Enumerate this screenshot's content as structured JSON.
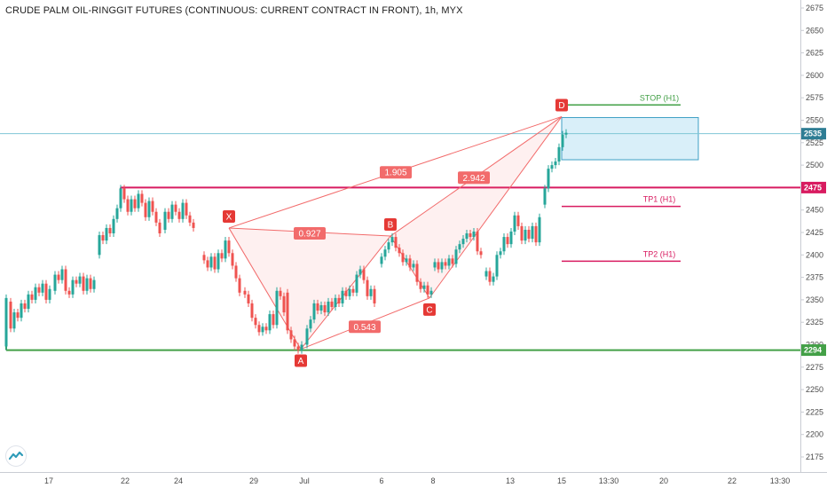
{
  "title": "CRUDE PALM OIL-RINGGIT FUTURES (CONTINUOUS: CURRENT CONTRACT IN FRONT), 1h, MYX",
  "colors": {
    "up": "#26a69a",
    "down": "#ef5350",
    "support": "#43a047",
    "resistance": "#d81b60",
    "pattern": "#f26b6b",
    "last_price": "#7fc6d6",
    "stop_zone_fill": "#d9eff9",
    "stop_zone_border": "#3d9fc4"
  },
  "chart_data": {
    "type": "candlestick",
    "ylim": [
      2165,
      2685
    ],
    "yticks": [
      2175,
      2200,
      2225,
      2250,
      2275,
      2300,
      2325,
      2350,
      2375,
      2400,
      2425,
      2450,
      2475,
      2500,
      2525,
      2550,
      2575,
      2600,
      2625,
      2650,
      2675
    ],
    "xticks": [
      {
        "label": "17",
        "pos": 55
      },
      {
        "label": "22",
        "pos": 141
      },
      {
        "label": "24",
        "pos": 201
      },
      {
        "label": "29",
        "pos": 286
      },
      {
        "label": "Jul",
        "pos": 343
      },
      {
        "label": "6",
        "pos": 430
      },
      {
        "label": "8",
        "pos": 488
      },
      {
        "label": "13",
        "pos": 575
      },
      {
        "label": "15",
        "pos": 633
      },
      {
        "label": "13:30",
        "pos": 686
      },
      {
        "label": "20",
        "pos": 748
      },
      {
        "label": "22",
        "pos": 825
      },
      {
        "label": "13:30",
        "pos": 879
      }
    ],
    "candles": [
      [
        7,
        2298,
        2352
      ],
      [
        12,
        2348,
        2318
      ],
      [
        16,
        2318,
        2336
      ],
      [
        20,
        2336,
        2330
      ],
      [
        24,
        2330,
        2346
      ],
      [
        28,
        2346,
        2340
      ],
      [
        32,
        2340,
        2356
      ],
      [
        36,
        2356,
        2350
      ],
      [
        40,
        2350,
        2364
      ],
      [
        44,
        2364,
        2358
      ],
      [
        48,
        2358,
        2368
      ],
      [
        52,
        2368,
        2350
      ],
      [
        56,
        2350,
        2362
      ],
      [
        62,
        2360,
        2378
      ],
      [
        66,
        2378,
        2372
      ],
      [
        70,
        2372,
        2384
      ],
      [
        74,
        2384,
        2360
      ],
      [
        78,
        2360,
        2356
      ],
      [
        82,
        2356,
        2372
      ],
      [
        86,
        2372,
        2368
      ],
      [
        90,
        2368,
        2376
      ],
      [
        94,
        2376,
        2360
      ],
      [
        98,
        2360,
        2374
      ],
      [
        102,
        2374,
        2362
      ],
      [
        106,
        2362,
        2372
      ],
      [
        112,
        2400,
        2422
      ],
      [
        116,
        2422,
        2416
      ],
      [
        120,
        2416,
        2430
      ],
      [
        124,
        2430,
        2424
      ],
      [
        128,
        2424,
        2440
      ],
      [
        132,
        2440,
        2452
      ],
      [
        136,
        2452,
        2474
      ],
      [
        140,
        2474,
        2462
      ],
      [
        144,
        2462,
        2448
      ],
      [
        148,
        2448,
        2462
      ],
      [
        152,
        2462,
        2452
      ],
      [
        156,
        2452,
        2468
      ],
      [
        160,
        2468,
        2458
      ],
      [
        164,
        2458,
        2442
      ],
      [
        168,
        2442,
        2460
      ],
      [
        172,
        2460,
        2448
      ],
      [
        176,
        2448,
        2436
      ],
      [
        180,
        2436,
        2424
      ],
      [
        186,
        2428,
        2448
      ],
      [
        190,
        2448,
        2440
      ],
      [
        194,
        2440,
        2456
      ],
      [
        198,
        2456,
        2448
      ],
      [
        202,
        2448,
        2440
      ],
      [
        206,
        2440,
        2458
      ],
      [
        210,
        2458,
        2444
      ],
      [
        214,
        2444,
        2436
      ],
      [
        218,
        2436,
        2430
      ],
      [
        230,
        2400,
        2394
      ],
      [
        234,
        2394,
        2386
      ],
      [
        238,
        2386,
        2398
      ],
      [
        242,
        2398,
        2384
      ],
      [
        246,
        2384,
        2402
      ],
      [
        250,
        2402,
        2396
      ],
      [
        254,
        2396,
        2416
      ],
      [
        258,
        2416,
        2402
      ],
      [
        262,
        2402,
        2388
      ],
      [
        266,
        2388,
        2374
      ],
      [
        270,
        2374,
        2358
      ],
      [
        276,
        2360,
        2356
      ],
      [
        280,
        2356,
        2346
      ],
      [
        284,
        2346,
        2330
      ],
      [
        288,
        2330,
        2322
      ],
      [
        292,
        2322,
        2314
      ],
      [
        296,
        2314,
        2320
      ],
      [
        300,
        2320,
        2316
      ],
      [
        304,
        2316,
        2334
      ],
      [
        308,
        2334,
        2322
      ],
      [
        312,
        2322,
        2360
      ],
      [
        316,
        2360,
        2354
      ],
      [
        320,
        2354,
        2336
      ],
      [
        324,
        2358,
        2316
      ],
      [
        328,
        2316,
        2306
      ],
      [
        332,
        2306,
        2298
      ],
      [
        336,
        2298,
        2294
      ],
      [
        340,
        2294,
        2300
      ],
      [
        346,
        2300,
        2318
      ],
      [
        350,
        2318,
        2328
      ],
      [
        354,
        2328,
        2346
      ],
      [
        358,
        2346,
        2338
      ],
      [
        362,
        2338,
        2344
      ],
      [
        366,
        2344,
        2336
      ],
      [
        370,
        2336,
        2348
      ],
      [
        374,
        2348,
        2342
      ],
      [
        378,
        2342,
        2352
      ],
      [
        382,
        2352,
        2346
      ],
      [
        386,
        2346,
        2360
      ],
      [
        390,
        2360,
        2354
      ],
      [
        394,
        2354,
        2362
      ],
      [
        398,
        2362,
        2358
      ],
      [
        402,
        2358,
        2378
      ],
      [
        406,
        2378,
        2384
      ],
      [
        410,
        2384,
        2372
      ],
      [
        414,
        2372,
        2354
      ],
      [
        418,
        2354,
        2362
      ],
      [
        422,
        2362,
        2346
      ],
      [
        430,
        2390,
        2398
      ],
      [
        434,
        2398,
        2406
      ],
      [
        438,
        2406,
        2414
      ],
      [
        442,
        2414,
        2420
      ],
      [
        446,
        2420,
        2408
      ],
      [
        450,
        2408,
        2402
      ],
      [
        454,
        2402,
        2392
      ],
      [
        458,
        2392,
        2396
      ],
      [
        462,
        2396,
        2386
      ],
      [
        466,
        2386,
        2390
      ],
      [
        470,
        2390,
        2370
      ],
      [
        474,
        2370,
        2362
      ],
      [
        478,
        2362,
        2366
      ],
      [
        482,
        2366,
        2356
      ],
      [
        486,
        2356,
        2360
      ],
      [
        490,
        2386,
        2392
      ],
      [
        494,
        2392,
        2384
      ],
      [
        498,
        2384,
        2392
      ],
      [
        502,
        2392,
        2388
      ],
      [
        506,
        2388,
        2396
      ],
      [
        510,
        2396,
        2390
      ],
      [
        514,
        2390,
        2406
      ],
      [
        518,
        2406,
        2412
      ],
      [
        522,
        2412,
        2418
      ],
      [
        526,
        2418,
        2424
      ],
      [
        530,
        2424,
        2420
      ],
      [
        534,
        2420,
        2426
      ],
      [
        538,
        2426,
        2404
      ],
      [
        542,
        2404,
        2400
      ],
      [
        548,
        2376,
        2382
      ],
      [
        552,
        2382,
        2370
      ],
      [
        556,
        2370,
        2376
      ],
      [
        560,
        2376,
        2400
      ],
      [
        564,
        2400,
        2404
      ],
      [
        568,
        2404,
        2420
      ],
      [
        572,
        2420,
        2412
      ],
      [
        576,
        2412,
        2426
      ],
      [
        580,
        2426,
        2444
      ],
      [
        584,
        2444,
        2432
      ],
      [
        588,
        2432,
        2416
      ],
      [
        592,
        2416,
        2428
      ],
      [
        596,
        2428,
        2418
      ],
      [
        600,
        2418,
        2432
      ],
      [
        604,
        2432,
        2414
      ],
      [
        608,
        2414,
        2442
      ],
      [
        614,
        2456,
        2474
      ],
      [
        618,
        2474,
        2496
      ],
      [
        622,
        2496,
        2500
      ],
      [
        626,
        2500,
        2504
      ],
      [
        630,
        2504,
        2520
      ],
      [
        634,
        2520,
        2534
      ],
      [
        638,
        2534,
        2536
      ]
    ],
    "levels": [
      {
        "label": "STOP (H1)",
        "price": 2567,
        "color": "#43a047"
      },
      {
        "label": "TP1 (H1)",
        "price": 2454,
        "color": "#d81b60"
      },
      {
        "label": "TP2 (H1)",
        "price": 2393,
        "color": "#d81b60"
      }
    ],
    "support": {
      "price": 2294,
      "label": "2294"
    },
    "resistance": {
      "price": 2475,
      "label": "2475"
    },
    "last_price": {
      "price": 2535,
      "label": "2535"
    },
    "zone": {
      "top": 2553,
      "bottom": 2506
    },
    "pattern_points": [
      {
        "label": "X",
        "price": 2430,
        "pos": 258,
        "below": false
      },
      {
        "label": "A",
        "price": 2295,
        "pos": 339,
        "below": true
      },
      {
        "label": "B",
        "price": 2421,
        "pos": 440,
        "below": false
      },
      {
        "label": "C",
        "price": 2352,
        "pos": 484,
        "below": true
      },
      {
        "label": "D",
        "price": 2554,
        "pos": 633,
        "below": false
      }
    ],
    "ratios": [
      {
        "label": "0.927",
        "price": 2424,
        "pos": 349
      },
      {
        "label": "1.905",
        "price": 2492,
        "pos": 446
      },
      {
        "label": "0.543",
        "price": 2320,
        "pos": 411
      },
      {
        "label": "2.942",
        "price": 2486,
        "pos": 534
      }
    ]
  }
}
